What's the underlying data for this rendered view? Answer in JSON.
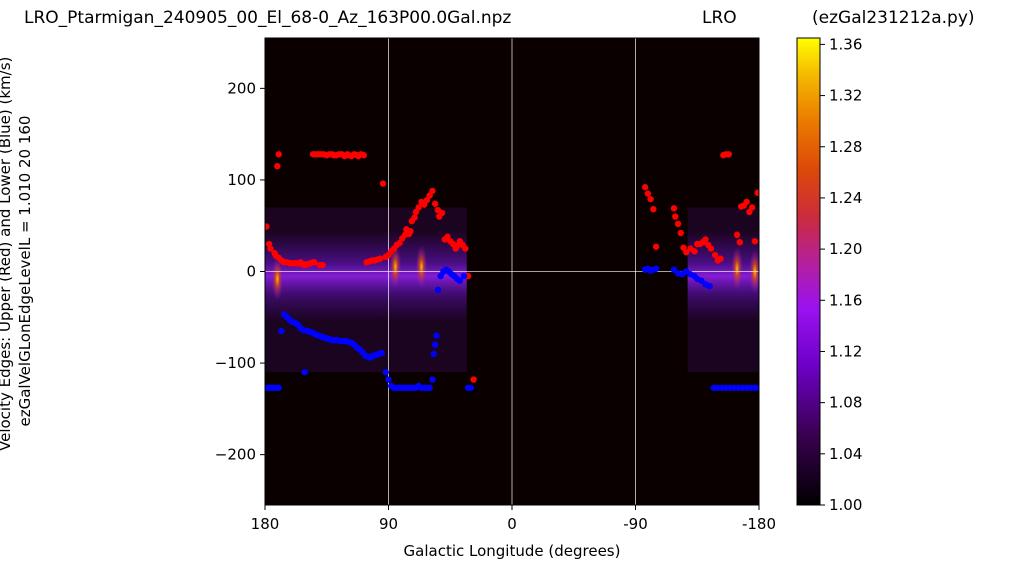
{
  "header": {
    "file": "LRO_Ptarmigan_240905_00_El_68-0_Az_163P00.0Gal.npz",
    "station": "LRO",
    "program": "(ezGal231212a.py)"
  },
  "colors": {
    "upper_edge": "#ff0000",
    "lower_edge": "#0000ff",
    "background": "#0b0000",
    "grid": "#ffffff"
  },
  "chart_data": {
    "type": "heatmap",
    "title": "",
    "xlabel": "Galactic Longitude (degrees)",
    "ylabel_line1": "Velocity Edges: Upper (Red) and Lower (Blue) (km/s)",
    "ylabel_line2": "ezGalVelGLonEdgeLevelL = 1.010  20  160",
    "xlim": [
      180,
      -180
    ],
    "ylim": [
      -255,
      255
    ],
    "xticks": [
      180,
      90,
      0,
      -90,
      -180
    ],
    "xtick_labels": [
      "180",
      "90",
      "0",
      "-90",
      "-180"
    ],
    "yticks": [
      200,
      100,
      0,
      -100,
      -200
    ],
    "ytick_labels": [
      "200",
      "100",
      "0",
      "−100",
      "−200"
    ],
    "grid": true,
    "colorbar": {
      "colormap": "gnuplot",
      "range": [
        1.0,
        1.365
      ],
      "ticks": [
        1.0,
        1.04,
        1.08,
        1.12,
        1.16,
        1.2,
        1.24,
        1.28,
        1.32,
        1.36
      ],
      "tick_labels": [
        "1.00",
        "1.04",
        "1.08",
        "1.12",
        "1.16",
        "1.20",
        "1.24",
        "1.28",
        "1.32",
        "1.36"
      ]
    },
    "observed_ranges": [
      [
        180,
        33
      ],
      [
        -128,
        -180
      ]
    ],
    "hot_spots": [
      {
        "x": 85,
        "y": 5,
        "level": 1.2
      },
      {
        "x": 66,
        "y": 5,
        "level": 1.22
      },
      {
        "x": 171,
        "y": -8,
        "level": 1.18
      },
      {
        "x": -164,
        "y": 3,
        "level": 1.24
      },
      {
        "x": -177,
        "y": 0,
        "level": 1.33
      }
    ],
    "series": [
      {
        "name": "Upper (Red)",
        "points": [
          [
            179,
            49
          ],
          [
            177,
            30
          ],
          [
            176,
            25
          ],
          [
            173,
            20
          ],
          [
            172,
            17
          ],
          [
            170,
            15
          ],
          [
            168,
            12
          ],
          [
            167,
            11
          ],
          [
            166,
            10
          ],
          [
            164,
            10
          ],
          [
            162,
            9
          ],
          [
            160,
            9
          ],
          [
            158,
            9
          ],
          [
            156,
            9
          ],
          [
            154,
            10
          ],
          [
            153,
            8
          ],
          [
            151,
            7
          ],
          [
            150,
            8
          ],
          [
            149,
            8
          ],
          [
            147,
            9
          ],
          [
            145,
            10
          ],
          [
            144,
            10
          ],
          [
            140,
            7
          ],
          [
            138,
            7
          ],
          [
            171,
            115
          ],
          [
            170,
            128
          ],
          [
            145,
            128
          ],
          [
            144,
            128
          ],
          [
            142,
            128
          ],
          [
            141,
            128
          ],
          [
            139,
            128
          ],
          [
            137,
            128
          ],
          [
            135,
            127
          ],
          [
            133,
            128
          ],
          [
            131,
            128
          ],
          [
            130,
            127
          ],
          [
            128,
            127
          ],
          [
            126,
            128
          ],
          [
            124,
            128
          ],
          [
            122,
            126
          ],
          [
            120,
            128
          ],
          [
            119,
            127
          ],
          [
            117,
            126
          ],
          [
            115,
            128
          ],
          [
            113,
            127
          ],
          [
            112,
            126
          ],
          [
            110,
            128
          ],
          [
            108,
            127
          ],
          [
            106,
            10
          ],
          [
            104,
            11
          ],
          [
            102,
            12
          ],
          [
            100,
            12
          ],
          [
            98,
            13
          ],
          [
            96,
            14
          ],
          [
            94,
            96
          ],
          [
            92,
            16
          ],
          [
            90,
            18
          ],
          [
            88,
            22
          ],
          [
            86,
            25
          ],
          [
            84,
            29
          ],
          [
            82,
            31
          ],
          [
            80,
            36
          ],
          [
            78,
            40
          ],
          [
            77,
            46
          ],
          [
            75,
            41
          ],
          [
            74,
            44
          ],
          [
            73,
            55
          ],
          [
            71,
            59
          ],
          [
            70,
            65
          ],
          [
            68,
            70
          ],
          [
            66,
            76
          ],
          [
            64,
            73
          ],
          [
            62,
            78
          ],
          [
            60,
            83
          ],
          [
            58,
            88
          ],
          [
            56,
            74
          ],
          [
            54,
            67
          ],
          [
            53,
            60
          ],
          [
            51,
            64
          ],
          [
            49,
            35
          ],
          [
            47,
            38
          ],
          [
            45,
            33
          ],
          [
            43,
            30
          ],
          [
            41,
            25
          ],
          [
            40,
            28
          ],
          [
            38,
            33
          ],
          [
            36,
            29
          ],
          [
            34,
            25
          ],
          [
            32,
            -5
          ],
          [
            28,
            -118
          ],
          [
            -97,
            92
          ],
          [
            -99,
            85
          ],
          [
            -101,
            79
          ],
          [
            -103,
            68
          ],
          [
            -105,
            27
          ],
          [
            -118,
            69
          ],
          [
            -119,
            60
          ],
          [
            -121,
            52
          ],
          [
            -123,
            42
          ],
          [
            -125,
            26
          ],
          [
            -127,
            21
          ],
          [
            -130,
            25
          ],
          [
            -133,
            22
          ],
          [
            -135,
            30
          ],
          [
            -137,
            30
          ],
          [
            -139,
            32
          ],
          [
            -141,
            35
          ],
          [
            -143,
            29
          ],
          [
            -145,
            25
          ],
          [
            -148,
            18
          ],
          [
            -150,
            12
          ],
          [
            -152,
            14
          ],
          [
            -154,
            127
          ],
          [
            -156,
            128
          ],
          [
            -158,
            128
          ],
          [
            -164,
            40
          ],
          [
            -166,
            32
          ],
          [
            -167,
            71
          ],
          [
            -169,
            72
          ],
          [
            -171,
            76
          ],
          [
            -173,
            65
          ],
          [
            -175,
            70
          ],
          [
            -177,
            33
          ],
          [
            -179,
            86
          ]
        ]
      },
      {
        "name": "Lower (Blue)",
        "points": [
          [
            180,
            -127
          ],
          [
            178,
            -127
          ],
          [
            176,
            -127
          ],
          [
            174,
            -127
          ],
          [
            172,
            -127
          ],
          [
            170,
            -127
          ],
          [
            168,
            -65
          ],
          [
            166,
            -47
          ],
          [
            164,
            -50
          ],
          [
            162,
            -53
          ],
          [
            160,
            -55
          ],
          [
            158,
            -56
          ],
          [
            156,
            -58
          ],
          [
            154,
            -62
          ],
          [
            152,
            -64
          ],
          [
            151,
            -110
          ],
          [
            149,
            -65
          ],
          [
            147,
            -66
          ],
          [
            145,
            -67
          ],
          [
            143,
            -69
          ],
          [
            141,
            -70
          ],
          [
            139,
            -71
          ],
          [
            137,
            -72
          ],
          [
            135,
            -73
          ],
          [
            133,
            -74
          ],
          [
            131,
            -75
          ],
          [
            129,
            -75
          ],
          [
            127,
            -75
          ],
          [
            125,
            -76
          ],
          [
            123,
            -76
          ],
          [
            121,
            -76
          ],
          [
            119,
            -77
          ],
          [
            117,
            -78
          ],
          [
            115,
            -80
          ],
          [
            113,
            -83
          ],
          [
            111,
            -85
          ],
          [
            109,
            -88
          ],
          [
            107,
            -92
          ],
          [
            105,
            -93
          ],
          [
            103,
            -94
          ],
          [
            101,
            -92
          ],
          [
            99,
            -91
          ],
          [
            97,
            -90
          ],
          [
            95,
            -89
          ],
          [
            92,
            -110
          ],
          [
            90,
            -118
          ],
          [
            88,
            -125
          ],
          [
            86,
            -127
          ],
          [
            84,
            -127
          ],
          [
            82,
            -127
          ],
          [
            80,
            -127
          ],
          [
            78,
            -127
          ],
          [
            76,
            -127
          ],
          [
            74,
            -127
          ],
          [
            72,
            -127
          ],
          [
            70,
            -127
          ],
          [
            68,
            -125
          ],
          [
            66,
            -127
          ],
          [
            64,
            -127
          ],
          [
            62,
            -127
          ],
          [
            60,
            -127
          ],
          [
            58,
            -118
          ],
          [
            57,
            -90
          ],
          [
            56,
            -80
          ],
          [
            55,
            -70
          ],
          [
            54,
            -20
          ],
          [
            52,
            -5
          ],
          [
            50,
            0
          ],
          [
            48,
            2
          ],
          [
            46,
            0
          ],
          [
            44,
            -3
          ],
          [
            42,
            -5
          ],
          [
            40,
            -8
          ],
          [
            38,
            -10
          ],
          [
            35,
            -5
          ],
          [
            32,
            -127
          ],
          [
            30,
            -127
          ],
          [
            -97,
            2
          ],
          [
            -99,
            3
          ],
          [
            -101,
            1
          ],
          [
            -103,
            2
          ],
          [
            -105,
            3
          ],
          [
            -118,
            2
          ],
          [
            -121,
            -2
          ],
          [
            -124,
            -3
          ],
          [
            -127,
            0
          ],
          [
            -130,
            -3
          ],
          [
            -133,
            -5
          ],
          [
            -135,
            -8
          ],
          [
            -138,
            -10
          ],
          [
            -141,
            -14
          ],
          [
            -144,
            -16
          ],
          [
            -147,
            -127
          ],
          [
            -150,
            -127
          ],
          [
            -153,
            -127
          ],
          [
            -156,
            -127
          ],
          [
            -159,
            -127
          ],
          [
            -162,
            -127
          ],
          [
            -165,
            -127
          ],
          [
            -168,
            -127
          ],
          [
            -171,
            -127
          ],
          [
            -174,
            -127
          ],
          [
            -177,
            -127
          ],
          [
            -180,
            -127
          ]
        ]
      }
    ]
  }
}
